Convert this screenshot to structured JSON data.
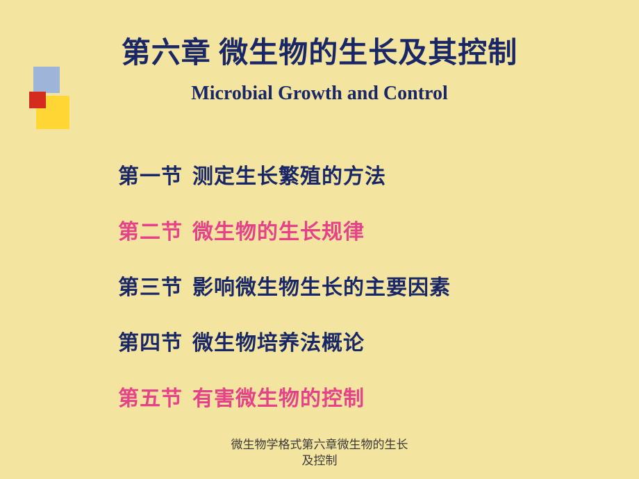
{
  "title": {
    "chinese": "第六章  微生物的生长及其控制",
    "english": "Microbial Growth and Control",
    "color": "#1a2766"
  },
  "decoration": {
    "colors": {
      "blue": "#9eb4d8",
      "red": "#d52b1e",
      "yellow": "#ffd633"
    }
  },
  "sections": [
    {
      "label": "第一节",
      "text": "测定生长繁殖的方法",
      "color": "blue"
    },
    {
      "label": "第二节",
      "text": "微生物的生长规律",
      "color": "pink"
    },
    {
      "label": "第三节",
      "text": "影响微生物生长的主要因素",
      "color": "blue"
    },
    {
      "label": "第四节",
      "text": "微生物培养法概论",
      "color": "blue"
    },
    {
      "label": "第五节",
      "text": "有害微生物的控制",
      "color": "pink"
    }
  ],
  "footer": {
    "line1": "微生物学格式第六章微生物的生长",
    "line2": "及控制"
  },
  "styling": {
    "background_color": "#f3e49f",
    "title_cn_fontsize": 42,
    "title_en_fontsize": 28,
    "section_fontsize": 30,
    "footer_fontsize": 17,
    "color_blue": "#1a2766",
    "color_pink": "#e6428a",
    "footer_color": "#3a3a3a"
  }
}
